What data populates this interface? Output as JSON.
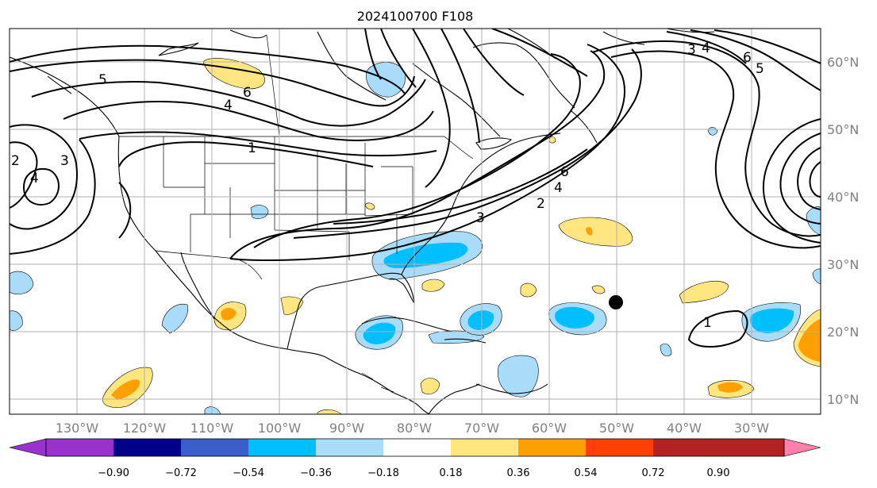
{
  "title": "2024100700 F108",
  "lon_labels": [
    "130°W",
    "120°W",
    "110°W",
    "100°W",
    "90°W",
    "80°W",
    "70°W",
    "60°W",
    "50°W",
    "40°W",
    "30°W"
  ],
  "lat_labels": [
    "60°N",
    "50°N",
    "40°N",
    "30°N",
    "20°N",
    "10°N"
  ],
  "colorbar": {
    "ticks": [
      "−0.90",
      "−0.72",
      "−0.54",
      "−0.36",
      "−0.18",
      "0.18",
      "0.36",
      "0.54",
      "0.72",
      "0.90"
    ],
    "colors": [
      "#9932cc",
      "#00008b",
      "#3a5fcd",
      "#00bfff",
      "#a8dcfa",
      "#ffffff",
      "#ffe680",
      "#ffa000",
      "#ff4000",
      "#b22222",
      "#ff80aa"
    ]
  },
  "contour_labels": [
    {
      "text": "5"
    },
    {
      "text": "4"
    },
    {
      "text": "6"
    },
    {
      "text": "1"
    },
    {
      "text": "2"
    },
    {
      "text": "4"
    },
    {
      "text": "3"
    },
    {
      "text": "3"
    },
    {
      "text": "2"
    },
    {
      "text": "4"
    },
    {
      "text": "6"
    },
    {
      "text": "3"
    },
    {
      "text": "4"
    },
    {
      "text": "6"
    },
    {
      "text": "5"
    },
    {
      "text": "1"
    }
  ],
  "marker": {
    "label": "storm-center",
    "lon": -50.5,
    "lat": 24.5
  }
}
